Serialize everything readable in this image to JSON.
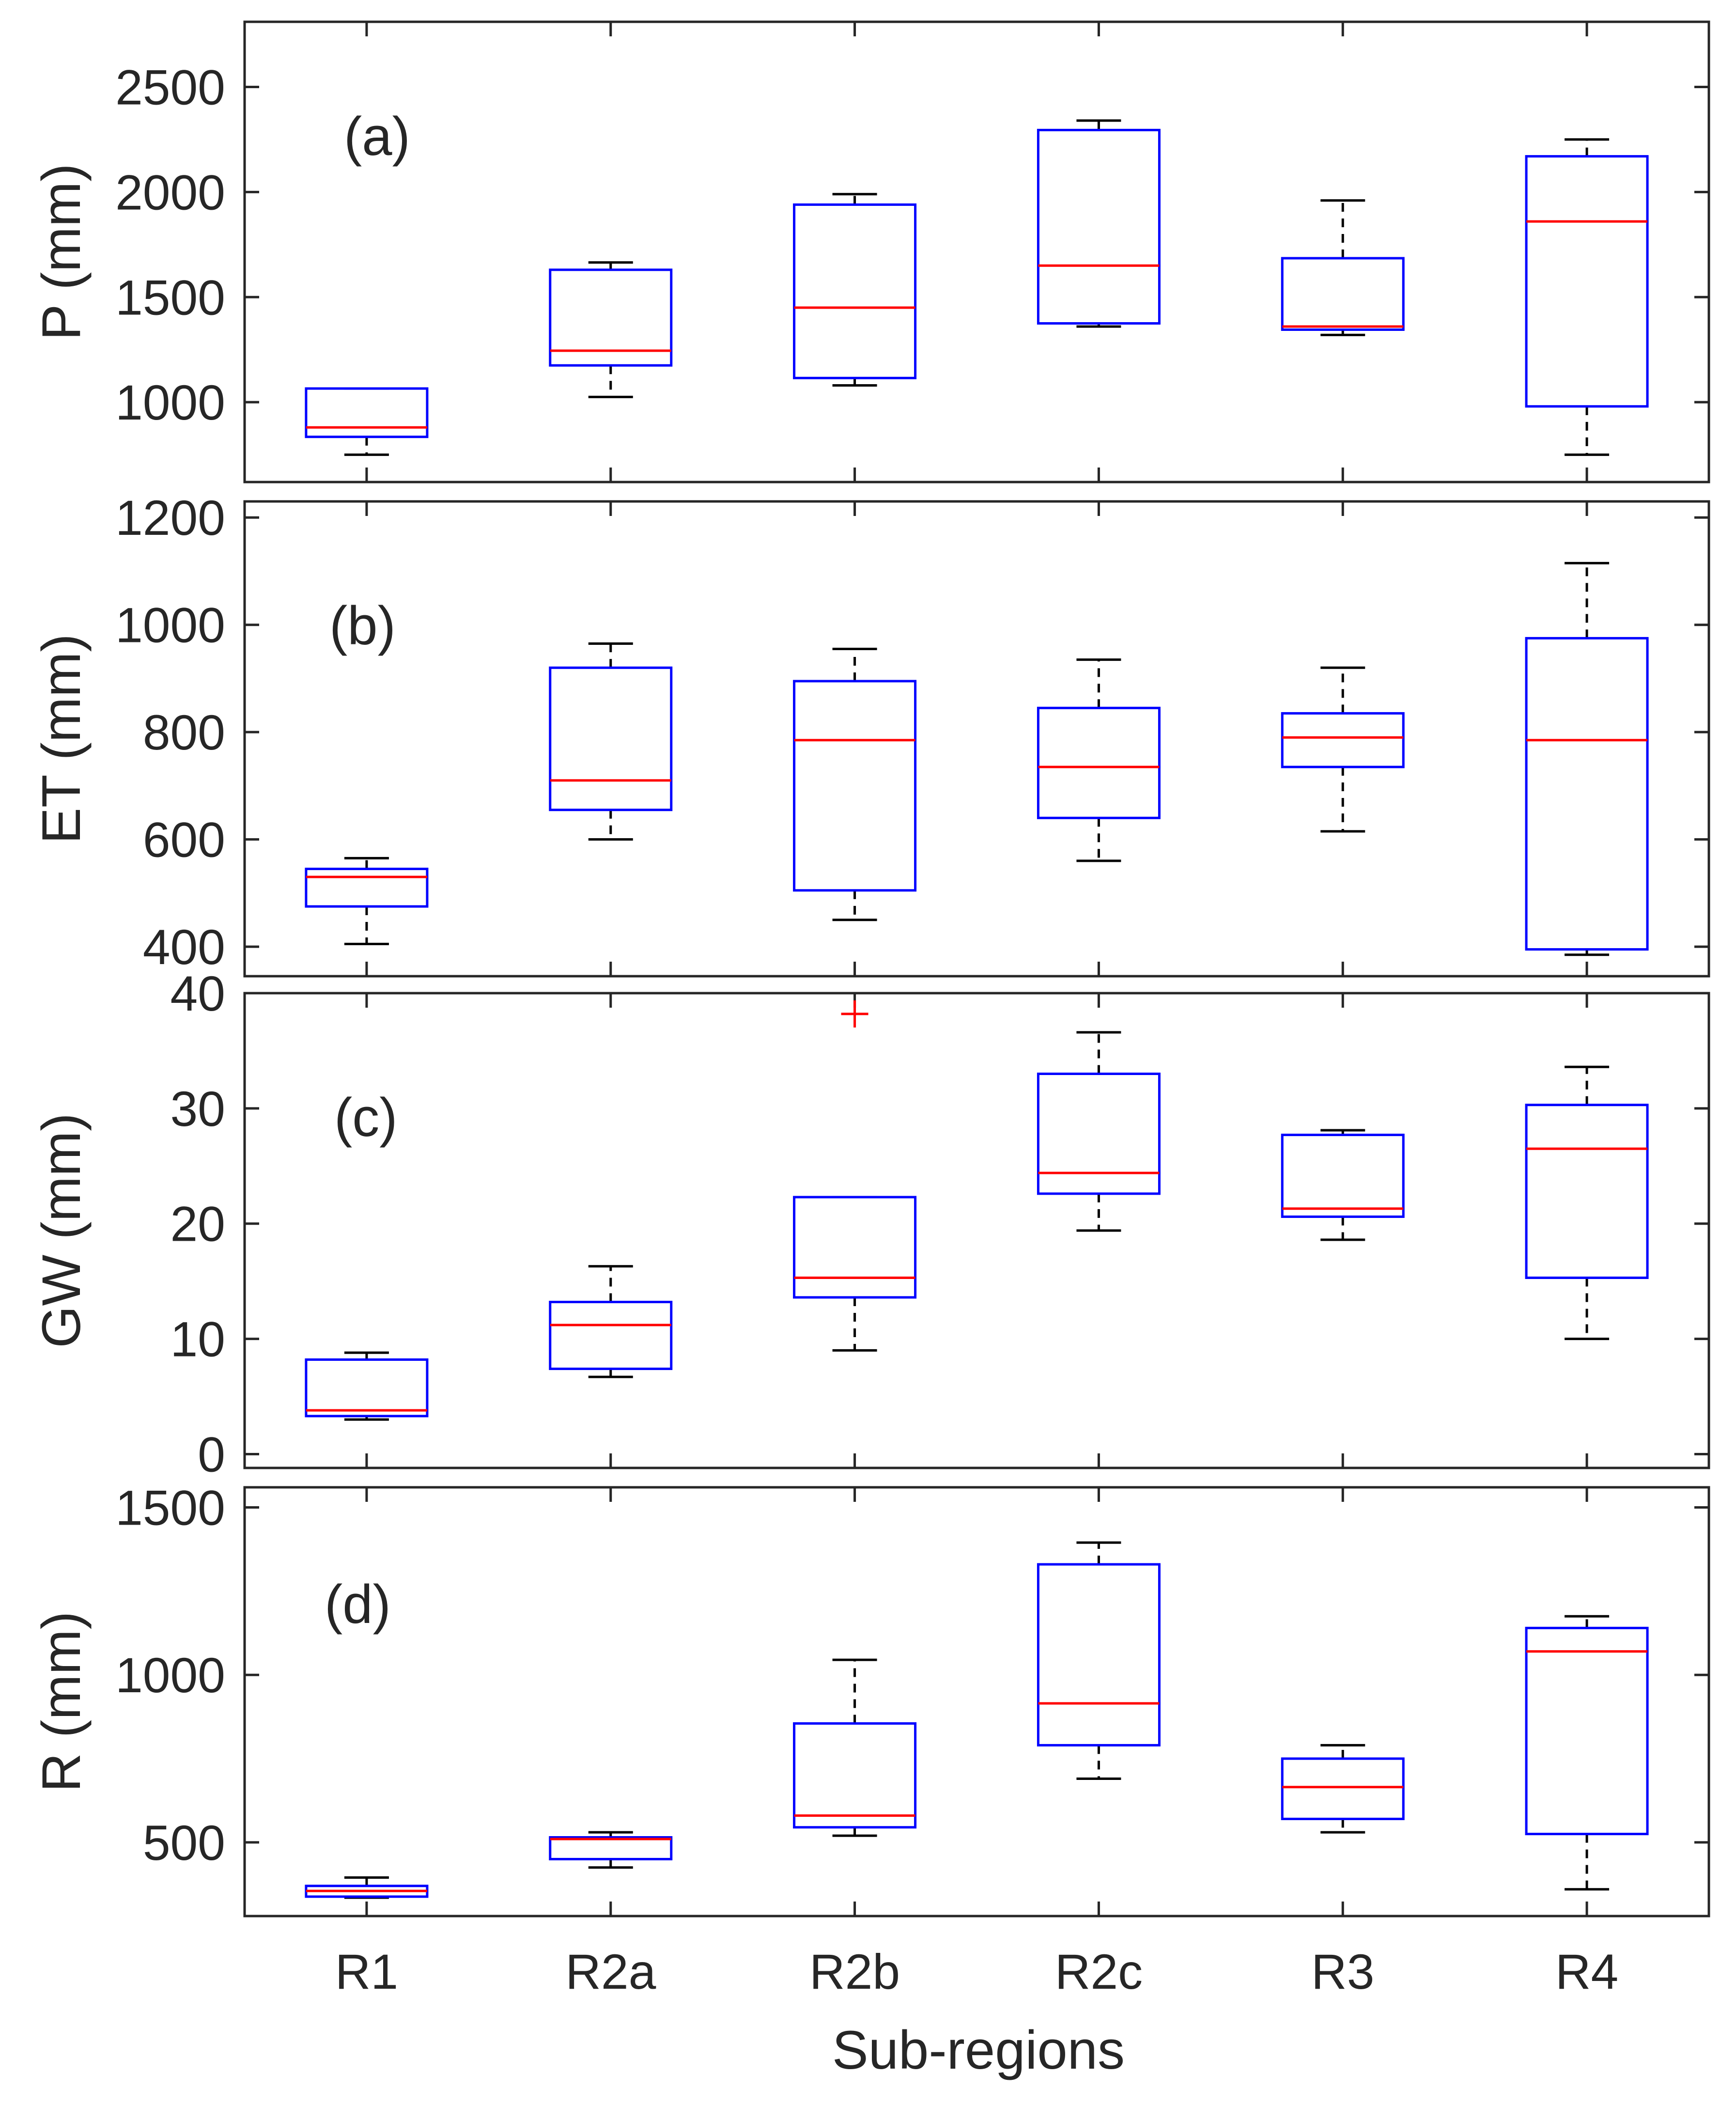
{
  "chart_data": [
    {
      "type": "box",
      "panel_label": "(a)",
      "ylabel": "P (mm)",
      "ylim": [
        620,
        2810
      ],
      "yticks": [
        1000,
        1500,
        2000,
        2500
      ],
      "categories": [
        "R1",
        "R2a",
        "R2b",
        "R2c",
        "R3",
        "R4"
      ],
      "boxes": [
        {
          "category": "R1",
          "whisker_low": 750,
          "q1": 835,
          "median": 880,
          "q3": 1065,
          "whisker_high": 1065,
          "outliers": []
        },
        {
          "category": "R2a",
          "whisker_low": 1025,
          "q1": 1175,
          "median": 1245,
          "q3": 1630,
          "whisker_high": 1665,
          "outliers": []
        },
        {
          "category": "R2b",
          "whisker_low": 1080,
          "q1": 1115,
          "median": 1450,
          "q3": 1940,
          "whisker_high": 1990,
          "outliers": []
        },
        {
          "category": "R2c",
          "whisker_low": 1360,
          "q1": 1375,
          "median": 1650,
          "q3": 2295,
          "whisker_high": 2340,
          "outliers": []
        },
        {
          "category": "R3",
          "whisker_low": 1320,
          "q1": 1345,
          "median": 1360,
          "q3": 1685,
          "whisker_high": 1960,
          "outliers": []
        },
        {
          "category": "R4",
          "whisker_low": 750,
          "q1": 980,
          "median": 1860,
          "q3": 2170,
          "whisker_high": 2250,
          "outliers": []
        }
      ]
    },
    {
      "type": "box",
      "panel_label": "(b)",
      "ylabel": "ET (mm)",
      "ylim": [
        345,
        1230
      ],
      "yticks": [
        400,
        600,
        800,
        1000,
        1200
      ],
      "categories": [
        "R1",
        "R2a",
        "R2b",
        "R2c",
        "R3",
        "R4"
      ],
      "boxes": [
        {
          "category": "R1",
          "whisker_low": 405,
          "q1": 475,
          "median": 530,
          "q3": 545,
          "whisker_high": 565,
          "outliers": []
        },
        {
          "category": "R2a",
          "whisker_low": 600,
          "q1": 655,
          "median": 710,
          "q3": 920,
          "whisker_high": 965,
          "outliers": []
        },
        {
          "category": "R2b",
          "whisker_low": 450,
          "q1": 505,
          "median": 785,
          "q3": 895,
          "whisker_high": 955,
          "outliers": []
        },
        {
          "category": "R2c",
          "whisker_low": 560,
          "q1": 640,
          "median": 735,
          "q3": 845,
          "whisker_high": 935,
          "outliers": []
        },
        {
          "category": "R3",
          "whisker_low": 615,
          "q1": 735,
          "median": 790,
          "q3": 835,
          "whisker_high": 920,
          "outliers": []
        },
        {
          "category": "R4",
          "whisker_low": 385,
          "q1": 395,
          "median": 785,
          "q3": 975,
          "whisker_high": 1115,
          "outliers": []
        }
      ]
    },
    {
      "type": "box",
      "panel_label": "(c)",
      "ylabel": "GW (mm)",
      "ylim": [
        -1.2,
        40
      ],
      "yticks": [
        0,
        10,
        20,
        30,
        40
      ],
      "categories": [
        "R1",
        "R2a",
        "R2b",
        "R2c",
        "R3",
        "R4"
      ],
      "boxes": [
        {
          "category": "R1",
          "whisker_low": 3.0,
          "q1": 3.3,
          "median": 3.8,
          "q3": 8.2,
          "whisker_high": 8.8,
          "outliers": []
        },
        {
          "category": "R2a",
          "whisker_low": 6.7,
          "q1": 7.4,
          "median": 11.2,
          "q3": 13.2,
          "whisker_high": 16.3,
          "outliers": []
        },
        {
          "category": "R2b",
          "whisker_low": 9.0,
          "q1": 13.6,
          "median": 15.3,
          "q3": 22.3,
          "whisker_high": 22.3,
          "outliers": [
            38.2
          ]
        },
        {
          "category": "R2c",
          "whisker_low": 19.4,
          "q1": 22.6,
          "median": 24.4,
          "q3": 33.0,
          "whisker_high": 36.6,
          "outliers": []
        },
        {
          "category": "R3",
          "whisker_low": 18.6,
          "q1": 20.6,
          "median": 21.3,
          "q3": 27.7,
          "whisker_high": 28.1,
          "outliers": []
        },
        {
          "category": "R4",
          "whisker_low": 10.0,
          "q1": 15.3,
          "median": 26.5,
          "q3": 30.3,
          "whisker_high": 33.6,
          "outliers": []
        }
      ]
    },
    {
      "type": "box",
      "panel_label": "(d)",
      "ylabel": "R (mm)",
      "ylim": [
        280,
        1560
      ],
      "yticks": [
        500,
        1000,
        1500
      ],
      "categories": [
        "R1",
        "R2a",
        "R2b",
        "R2c",
        "R3",
        "R4"
      ],
      "boxes": [
        {
          "category": "R1",
          "whisker_low": 335,
          "q1": 338,
          "median": 355,
          "q3": 370,
          "whisker_high": 395,
          "outliers": []
        },
        {
          "category": "R2a",
          "whisker_low": 425,
          "q1": 450,
          "median": 510,
          "q3": 515,
          "whisker_high": 530,
          "outliers": []
        },
        {
          "category": "R2b",
          "whisker_low": 520,
          "q1": 545,
          "median": 580,
          "q3": 855,
          "whisker_high": 1045,
          "outliers": []
        },
        {
          "category": "R2c",
          "whisker_low": 690,
          "q1": 790,
          "median": 915,
          "q3": 1330,
          "whisker_high": 1395,
          "outliers": []
        },
        {
          "category": "R3",
          "whisker_low": 530,
          "q1": 570,
          "median": 665,
          "q3": 750,
          "whisker_high": 790,
          "outliers": []
        },
        {
          "category": "R4",
          "whisker_low": 360,
          "q1": 525,
          "median": 1070,
          "q3": 1140,
          "whisker_high": 1175,
          "outliers": []
        }
      ]
    }
  ],
  "xlabel": "Sub-regions",
  "colors": {
    "box": "#0000ff",
    "median": "#ff0000",
    "whisker": "#000000",
    "outlier": "#ff0000",
    "axis": "#262626"
  }
}
